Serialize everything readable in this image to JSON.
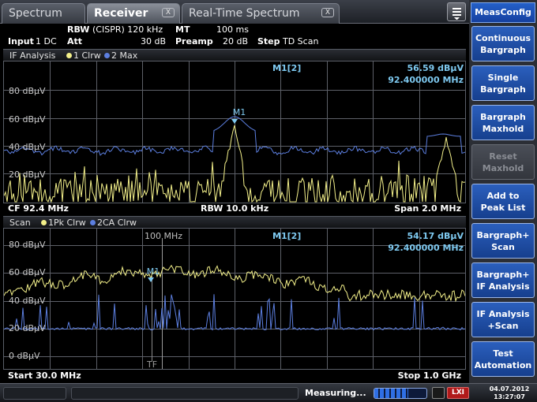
{
  "tabs": [
    {
      "label": "Spectrum",
      "active": false,
      "closable": false
    },
    {
      "label": "Receiver",
      "active": true,
      "closable": true
    },
    {
      "label": "Real-Time Spectrum",
      "active": false,
      "closable": true
    }
  ],
  "tab_close_glyph": "X",
  "settings": {
    "rbw_label": "RBW",
    "rbw_value": "(CISPR) 120 kHz",
    "mt_label": "MT",
    "mt_value": "100 ms",
    "input_label": "Input",
    "input_value": "1 DC",
    "att_label": "Att",
    "att_value": "30 dB",
    "preamp_label": "Preamp",
    "preamp_value": "20 dB",
    "step_label": "Step",
    "step_value": "TD Scan"
  },
  "if_pane": {
    "title": "IF Analysis",
    "legend": [
      {
        "label": "1 Clrw",
        "color": "#f3f08a"
      },
      {
        "label": "2 Max",
        "color": "#5c7fe0"
      }
    ],
    "marker_name": "M1[2]",
    "marker_level": "56.59 dBµV",
    "marker_freq": "92.400000 MHz",
    "marker_tag": "M1",
    "y_ticks": [
      "80 dBµV",
      "60 dBµV",
      "40 dBµV",
      "20 dBµV"
    ],
    "footer_left": "CF 92.4 MHz",
    "footer_mid": "RBW 10.0 kHz",
    "footer_right": "Span 2.0 MHz"
  },
  "scan_pane": {
    "title": "Scan",
    "legend": [
      {
        "label": "1Pk Clrw",
        "color": "#f3f08a"
      },
      {
        "label": "2CA Clrw",
        "color": "#5c7fe0"
      }
    ],
    "marker_name": "M1[2]",
    "marker_level": "54.17 dBµV",
    "marker_freq": "92.400000 MHz",
    "marker_tag": "M1",
    "freq_line_label": "100 MHz",
    "tf_label": "TF",
    "y_ticks": [
      "80 dBµV",
      "60 dBµV",
      "40 dBµV",
      "20 dBµV",
      "0 dBµV"
    ],
    "footer_left": "Start 30.0 MHz",
    "footer_right": "Stop 1.0 GHz"
  },
  "softkeys": {
    "title": "MeasConfig",
    "buttons": [
      {
        "label": "Continuous\nBargraph",
        "enabled": true
      },
      {
        "label": "Single\nBargraph",
        "enabled": true
      },
      {
        "label": "Bargraph\nMaxhold",
        "enabled": true
      },
      {
        "label": "Reset\nMaxhold",
        "enabled": false
      },
      {
        "label": "Add to\nPeak List",
        "enabled": true
      },
      {
        "label": "Bargraph+\nScan",
        "enabled": true
      },
      {
        "label": "Bargraph+\nIF Analysis",
        "enabled": true
      },
      {
        "label": "IF Analysis\n+Scan",
        "enabled": true
      },
      {
        "label": "Test\nAutomation",
        "enabled": true
      }
    ]
  },
  "status": {
    "message": "Measuring...",
    "progress": 0.65,
    "date": "04.07.2012",
    "time": "13:27:07",
    "icon2": "LXI"
  },
  "colors": {
    "trace1": "#f3f08a",
    "trace2": "#5c7fe0",
    "marker": "#7ec9f0",
    "grid": "#5d6068"
  }
}
